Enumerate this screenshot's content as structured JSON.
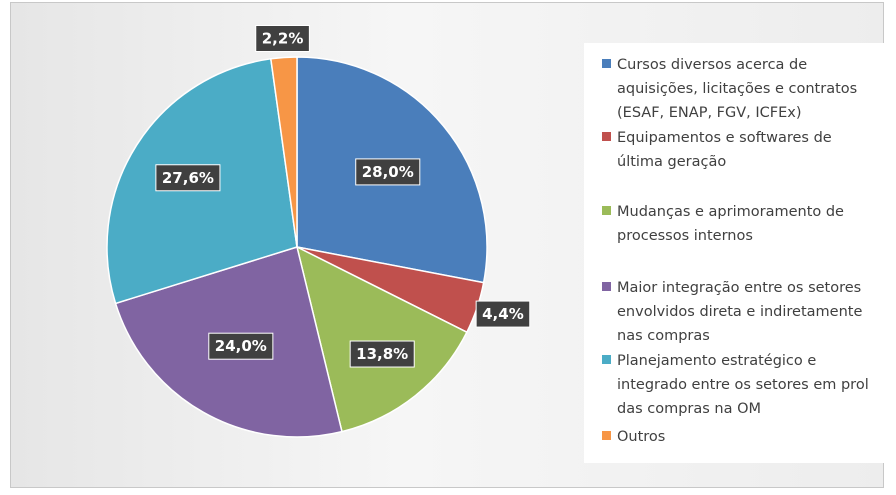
{
  "chart_data": {
    "type": "pie",
    "categories": [
      "Cursos diversos acerca de aquisições, licitações e contratos (ESAF, ENAP, FGV, ICFEx)",
      "Equipamentos e softwares de última geração",
      "Mudanças e aprimoramento de processos internos",
      "Maior integração entre os setores envolvidos direta e indiretamente nas compras",
      "Planejamento estratégico e integrado entre os setores em prol das compras na OM",
      "Outros"
    ],
    "values": [
      28.0,
      4.4,
      13.8,
      24.0,
      27.6,
      2.2
    ],
    "data_labels": [
      "28,0%",
      "4,4%",
      "13,8%",
      "24,0%",
      "27,6%",
      "2,2%"
    ],
    "colors": [
      "#4a7ebb",
      "#c0504d",
      "#9bbb59",
      "#8064a2",
      "#4bacc6",
      "#f79646"
    ],
    "legend_placement": "right",
    "title": ""
  }
}
